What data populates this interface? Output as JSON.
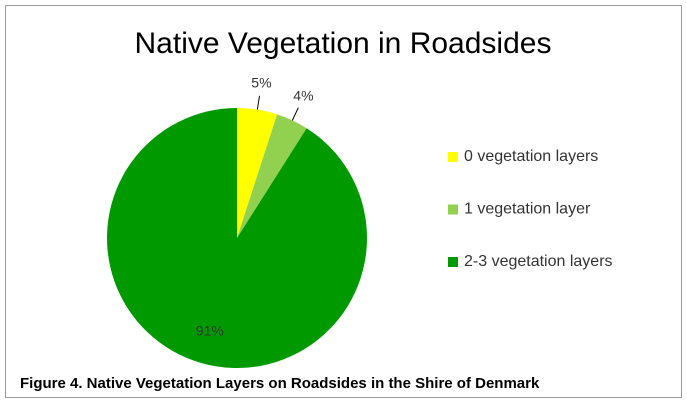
{
  "chart_data": {
    "type": "pie",
    "title": "Native Vegetation in Roadsides",
    "categories": [
      "0 vegetation layers",
      "1 vegetation layer",
      "2-3 vegetation layers"
    ],
    "values": [
      5,
      4,
      91
    ],
    "value_labels": [
      "5%",
      "4%",
      "91%"
    ],
    "colors": [
      "#ffff00",
      "#92d050",
      "#009a00"
    ],
    "legend": "right",
    "caption": "Figure 4. Native Vegetation Layers on Roadsides in the Shire of Denmark"
  }
}
